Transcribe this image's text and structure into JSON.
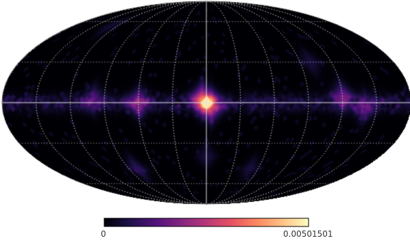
{
  "projection": "mollweide",
  "colormap": "magma",
  "background_color": "#ffffff",
  "graticule": {
    "shown": true,
    "style": "dotted",
    "color": "#cfcfcf"
  },
  "axes_lines": {
    "shown": true,
    "color": "#e6e6e6"
  },
  "colorbar": {
    "min_label": "0",
    "max_label": "0.00501501",
    "stops": [
      "#000004",
      "#1d1147",
      "#51127c",
      "#832681",
      "#b73779",
      "#e75263",
      "#fc8961",
      "#fec488",
      "#fcfdbf"
    ]
  },
  "hotspots": [
    {
      "lon": 0,
      "lat": 0,
      "value": 1.0
    },
    {
      "lon": 4,
      "lat": 3,
      "value": 0.55
    },
    {
      "lon": -4,
      "lat": -3,
      "value": 0.5
    },
    {
      "lon": 60,
      "lat": 0,
      "value": 0.35
    },
    {
      "lon": -120,
      "lat": 5,
      "value": 0.3
    },
    {
      "lon": -140,
      "lat": -4,
      "value": 0.25
    },
    {
      "lon": 100,
      "lat": 3,
      "value": 0.2
    },
    {
      "lon": -100,
      "lat": 30,
      "value": 0.12
    },
    {
      "lon": 80,
      "lat": -50,
      "value": 0.18
    },
    {
      "lon": -50,
      "lat": -50,
      "value": 0.12
    },
    {
      "lon": 0,
      "lat": -40,
      "value": 0.12
    },
    {
      "lon": 130,
      "lat": 60,
      "value": 0.1
    }
  ]
}
